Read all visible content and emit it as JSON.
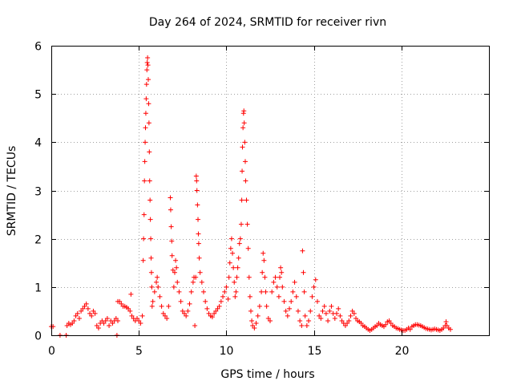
{
  "chart_data": {
    "type": "scatter",
    "title": "Day 264 of 2024, SRMTID for receiver rivn",
    "xlabel": "GPS time / hours",
    "ylabel": "SRMTID / TECUs",
    "xlim": [
      0,
      25
    ],
    "ylim": [
      0,
      6
    ],
    "xticks": [
      0,
      5,
      10,
      15,
      20
    ],
    "yticks": [
      0,
      1,
      2,
      3,
      4,
      5,
      6
    ],
    "grid": true,
    "marker": "+",
    "color": "#ff0000",
    "series": [
      {
        "name": "SRMTID",
        "points": [
          [
            0.0,
            0.18
          ],
          [
            0.1,
            0.18
          ],
          [
            0.5,
            0.0
          ],
          [
            0.85,
            0.0
          ],
          [
            0.9,
            0.2
          ],
          [
            1.0,
            0.25
          ],
          [
            1.1,
            0.22
          ],
          [
            1.2,
            0.25
          ],
          [
            1.3,
            0.3
          ],
          [
            1.4,
            0.4
          ],
          [
            1.5,
            0.45
          ],
          [
            1.6,
            0.35
          ],
          [
            1.7,
            0.5
          ],
          [
            1.8,
            0.55
          ],
          [
            1.9,
            0.6
          ],
          [
            2.0,
            0.65
          ],
          [
            2.1,
            0.55
          ],
          [
            2.2,
            0.45
          ],
          [
            2.3,
            0.4
          ],
          [
            2.4,
            0.5
          ],
          [
            2.5,
            0.45
          ],
          [
            2.6,
            0.2
          ],
          [
            2.7,
            0.15
          ],
          [
            2.8,
            0.25
          ],
          [
            2.9,
            0.3
          ],
          [
            3.0,
            0.25
          ],
          [
            3.1,
            0.3
          ],
          [
            3.2,
            0.35
          ],
          [
            3.3,
            0.2
          ],
          [
            3.4,
            0.3
          ],
          [
            3.5,
            0.25
          ],
          [
            3.6,
            0.3
          ],
          [
            3.7,
            0.35
          ],
          [
            3.8,
            0.3
          ],
          [
            3.75,
            0.0
          ],
          [
            3.8,
            0.7
          ],
          [
            3.9,
            0.7
          ],
          [
            4.0,
            0.65
          ],
          [
            4.1,
            0.6
          ],
          [
            4.2,
            0.6
          ],
          [
            4.3,
            0.58
          ],
          [
            4.4,
            0.55
          ],
          [
            4.5,
            0.5
          ],
          [
            4.55,
            0.85
          ],
          [
            4.6,
            0.4
          ],
          [
            4.7,
            0.35
          ],
          [
            4.8,
            0.3
          ],
          [
            4.9,
            0.35
          ],
          [
            5.0,
            0.3
          ],
          [
            5.1,
            0.25
          ],
          [
            5.2,
            0.4
          ],
          [
            5.25,
            1.55
          ],
          [
            5.27,
            2.0
          ],
          [
            5.3,
            2.5
          ],
          [
            5.32,
            3.2
          ],
          [
            5.34,
            3.6
          ],
          [
            5.36,
            4.0
          ],
          [
            5.38,
            4.3
          ],
          [
            5.4,
            4.6
          ],
          [
            5.42,
            4.9
          ],
          [
            5.44,
            5.2
          ],
          [
            5.46,
            5.5
          ],
          [
            5.48,
            5.65
          ],
          [
            5.5,
            5.75
          ],
          [
            5.52,
            5.6
          ],
          [
            5.54,
            5.3
          ],
          [
            5.56,
            4.8
          ],
          [
            5.58,
            4.4
          ],
          [
            5.6,
            3.8
          ],
          [
            5.62,
            3.2
          ],
          [
            5.64,
            2.8
          ],
          [
            5.66,
            2.4
          ],
          [
            5.68,
            2.0
          ],
          [
            5.7,
            1.6
          ],
          [
            5.72,
            1.3
          ],
          [
            5.74,
            1.0
          ],
          [
            5.76,
            0.6
          ],
          [
            5.8,
            0.7
          ],
          [
            5.9,
            0.9
          ],
          [
            6.0,
            1.1
          ],
          [
            6.05,
            1.2
          ],
          [
            6.1,
            1.0
          ],
          [
            6.2,
            0.8
          ],
          [
            6.3,
            0.6
          ],
          [
            6.4,
            0.45
          ],
          [
            6.5,
            0.4
          ],
          [
            6.6,
            0.35
          ],
          [
            6.7,
            0.6
          ],
          [
            6.8,
            2.85
          ],
          [
            6.82,
            2.6
          ],
          [
            6.85,
            2.25
          ],
          [
            6.88,
            1.95
          ],
          [
            6.9,
            1.65
          ],
          [
            6.95,
            1.35
          ],
          [
            7.0,
            1.0
          ],
          [
            7.05,
            1.3
          ],
          [
            7.1,
            1.55
          ],
          [
            7.15,
            1.4
          ],
          [
            7.2,
            1.1
          ],
          [
            7.3,
            0.9
          ],
          [
            7.4,
            0.7
          ],
          [
            7.5,
            0.5
          ],
          [
            7.6,
            0.45
          ],
          [
            7.7,
            0.4
          ],
          [
            7.8,
            0.5
          ],
          [
            7.9,
            0.65
          ],
          [
            8.0,
            0.9
          ],
          [
            8.1,
            1.1
          ],
          [
            8.15,
            1.2
          ],
          [
            8.2,
            0.2
          ],
          [
            8.25,
            1.2
          ],
          [
            8.28,
            3.3
          ],
          [
            8.3,
            3.2
          ],
          [
            8.32,
            3.0
          ],
          [
            8.35,
            2.7
          ],
          [
            8.38,
            2.4
          ],
          [
            8.4,
            2.1
          ],
          [
            8.42,
            1.9
          ],
          [
            8.45,
            1.6
          ],
          [
            8.5,
            1.3
          ],
          [
            8.6,
            1.1
          ],
          [
            8.7,
            0.9
          ],
          [
            8.8,
            0.7
          ],
          [
            8.9,
            0.55
          ],
          [
            9.0,
            0.45
          ],
          [
            9.1,
            0.4
          ],
          [
            9.2,
            0.38
          ],
          [
            9.3,
            0.45
          ],
          [
            9.4,
            0.5
          ],
          [
            9.5,
            0.55
          ],
          [
            9.6,
            0.6
          ],
          [
            9.7,
            0.7
          ],
          [
            9.8,
            0.8
          ],
          [
            9.9,
            0.9
          ],
          [
            10.0,
            1.0
          ],
          [
            10.1,
            0.75
          ],
          [
            10.15,
            1.2
          ],
          [
            10.2,
            1.5
          ],
          [
            10.25,
            1.8
          ],
          [
            10.3,
            2.0
          ],
          [
            10.35,
            1.7
          ],
          [
            10.4,
            1.4
          ],
          [
            10.45,
            1.1
          ],
          [
            10.5,
            0.8
          ],
          [
            10.55,
            0.9
          ],
          [
            10.6,
            1.2
          ],
          [
            10.65,
            1.4
          ],
          [
            10.7,
            1.6
          ],
          [
            10.75,
            1.9
          ],
          [
            10.8,
            2.0
          ],
          [
            10.85,
            2.3
          ],
          [
            10.88,
            2.8
          ],
          [
            10.9,
            3.4
          ],
          [
            10.92,
            3.9
          ],
          [
            10.95,
            4.3
          ],
          [
            10.98,
            4.6
          ],
          [
            11.0,
            4.65
          ],
          [
            11.02,
            4.4
          ],
          [
            11.05,
            4.0
          ],
          [
            11.08,
            3.6
          ],
          [
            11.1,
            3.2
          ],
          [
            11.15,
            2.8
          ],
          [
            11.2,
            2.3
          ],
          [
            11.25,
            1.8
          ],
          [
            11.3,
            1.2
          ],
          [
            11.35,
            0.8
          ],
          [
            11.4,
            0.5
          ],
          [
            11.45,
            0.3
          ],
          [
            11.5,
            0.2
          ],
          [
            11.6,
            0.15
          ],
          [
            11.7,
            0.25
          ],
          [
            11.8,
            0.4
          ],
          [
            11.9,
            0.6
          ],
          [
            12.0,
            0.9
          ],
          [
            12.05,
            1.3
          ],
          [
            12.1,
            1.7
          ],
          [
            12.15,
            1.55
          ],
          [
            12.2,
            1.2
          ],
          [
            12.25,
            0.9
          ],
          [
            12.3,
            0.6
          ],
          [
            12.4,
            0.35
          ],
          [
            12.5,
            0.3
          ],
          [
            12.6,
            0.9
          ],
          [
            12.7,
            1.1
          ],
          [
            12.8,
            1.2
          ],
          [
            12.9,
            1.0
          ],
          [
            13.0,
            0.8
          ],
          [
            13.05,
            1.2
          ],
          [
            13.1,
            1.4
          ],
          [
            13.15,
            1.3
          ],
          [
            13.2,
            1.0
          ],
          [
            13.3,
            0.7
          ],
          [
            13.4,
            0.5
          ],
          [
            13.5,
            0.4
          ],
          [
            13.6,
            0.55
          ],
          [
            13.7,
            0.7
          ],
          [
            13.8,
            0.9
          ],
          [
            13.9,
            1.1
          ],
          [
            14.0,
            0.8
          ],
          [
            14.1,
            0.5
          ],
          [
            14.2,
            0.3
          ],
          [
            14.3,
            0.2
          ],
          [
            14.35,
            1.75
          ],
          [
            14.4,
            1.3
          ],
          [
            14.45,
            0.9
          ],
          [
            14.5,
            0.4
          ],
          [
            14.6,
            0.2
          ],
          [
            14.7,
            0.3
          ],
          [
            14.8,
            0.5
          ],
          [
            14.9,
            0.8
          ],
          [
            15.0,
            1.0
          ],
          [
            15.1,
            1.15
          ],
          [
            15.2,
            0.7
          ],
          [
            15.3,
            0.4
          ],
          [
            15.4,
            0.35
          ],
          [
            15.5,
            0.5
          ],
          [
            15.6,
            0.6
          ],
          [
            15.7,
            0.45
          ],
          [
            15.8,
            0.3
          ],
          [
            15.9,
            0.5
          ],
          [
            16.0,
            0.6
          ],
          [
            16.1,
            0.45
          ],
          [
            16.2,
            0.35
          ],
          [
            16.3,
            0.45
          ],
          [
            16.4,
            0.55
          ],
          [
            16.5,
            0.4
          ],
          [
            16.6,
            0.3
          ],
          [
            16.7,
            0.25
          ],
          [
            16.8,
            0.2
          ],
          [
            16.9,
            0.25
          ],
          [
            17.0,
            0.3
          ],
          [
            17.1,
            0.4
          ],
          [
            17.2,
            0.5
          ],
          [
            17.3,
            0.45
          ],
          [
            17.4,
            0.35
          ],
          [
            17.5,
            0.3
          ],
          [
            17.6,
            0.28
          ],
          [
            17.7,
            0.25
          ],
          [
            17.8,
            0.2
          ],
          [
            17.9,
            0.18
          ],
          [
            18.0,
            0.15
          ],
          [
            18.1,
            0.12
          ],
          [
            18.2,
            0.1
          ],
          [
            18.3,
            0.12
          ],
          [
            18.4,
            0.15
          ],
          [
            18.5,
            0.18
          ],
          [
            18.6,
            0.2
          ],
          [
            18.7,
            0.25
          ],
          [
            18.8,
            0.22
          ],
          [
            18.9,
            0.2
          ],
          [
            19.0,
            0.18
          ],
          [
            19.1,
            0.22
          ],
          [
            19.2,
            0.28
          ],
          [
            19.3,
            0.3
          ],
          [
            19.4,
            0.25
          ],
          [
            19.5,
            0.2
          ],
          [
            19.6,
            0.18
          ],
          [
            19.7,
            0.15
          ],
          [
            19.8,
            0.14
          ],
          [
            19.9,
            0.12
          ],
          [
            20.0,
            0.11
          ],
          [
            20.1,
            0.1
          ],
          [
            20.2,
            0.1
          ],
          [
            20.3,
            0.12
          ],
          [
            20.4,
            0.15
          ],
          [
            20.5,
            0.12
          ],
          [
            20.6,
            0.18
          ],
          [
            20.7,
            0.2
          ],
          [
            20.8,
            0.22
          ],
          [
            20.9,
            0.22
          ],
          [
            21.0,
            0.21
          ],
          [
            21.1,
            0.2
          ],
          [
            21.2,
            0.18
          ],
          [
            21.3,
            0.16
          ],
          [
            21.4,
            0.14
          ],
          [
            21.5,
            0.13
          ],
          [
            21.6,
            0.12
          ],
          [
            21.7,
            0.11
          ],
          [
            21.8,
            0.12
          ],
          [
            21.9,
            0.13
          ],
          [
            22.0,
            0.12
          ],
          [
            22.1,
            0.11
          ],
          [
            22.2,
            0.1
          ],
          [
            22.3,
            0.12
          ],
          [
            22.4,
            0.15
          ],
          [
            22.5,
            0.2
          ],
          [
            22.55,
            0.28
          ],
          [
            22.6,
            0.2
          ],
          [
            22.7,
            0.15
          ],
          [
            22.8,
            0.12
          ]
        ]
      }
    ]
  }
}
